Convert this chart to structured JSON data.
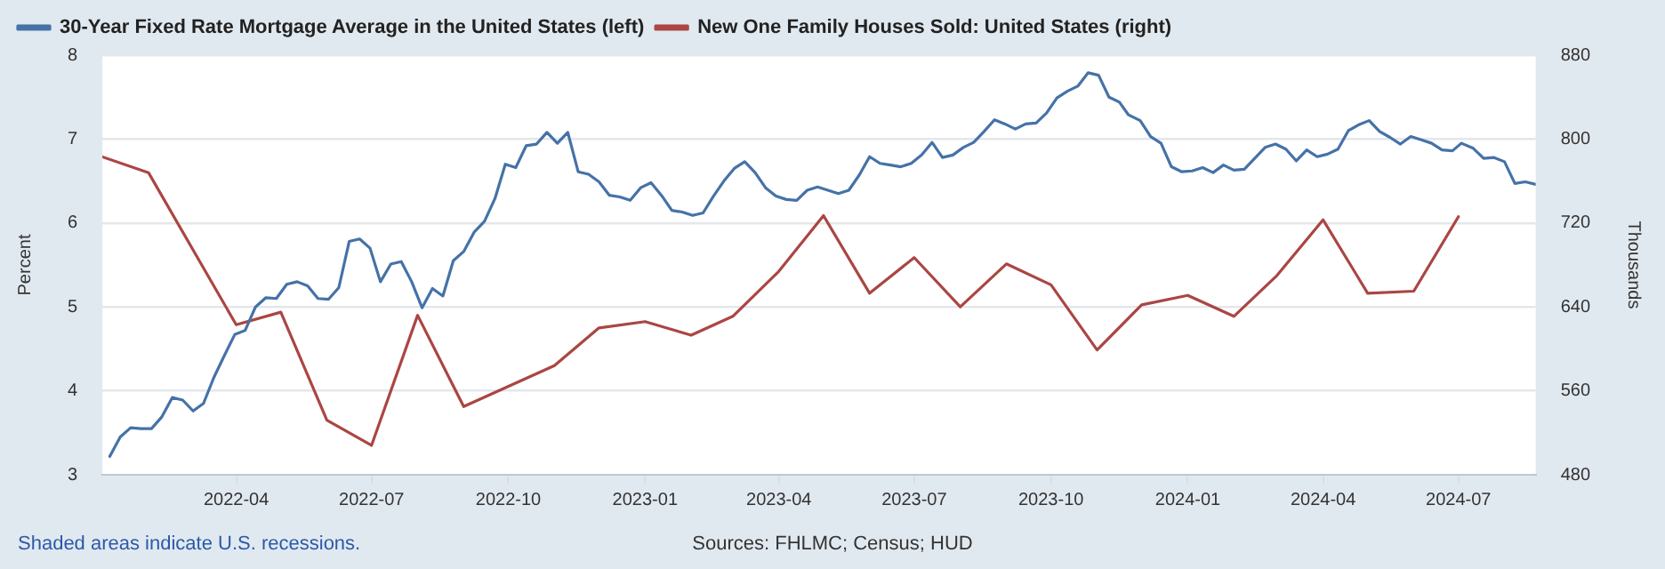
{
  "chart_data": {
    "type": "line",
    "ylabel": "Percent",
    "y2label": "Thousands",
    "annotations": [
      "Shaded areas indicate U.S. recessions.",
      "Sources: FHLMC; Census; HUD"
    ],
    "xlim": [
      "2022-01-01",
      "2024-08-22"
    ],
    "xticks": [
      "2022-04",
      "2022-07",
      "2022-10",
      "2023-01",
      "2023-04",
      "2023-07",
      "2023-10",
      "2024-01",
      "2024-04",
      "2024-07"
    ],
    "ylim": [
      3,
      8
    ],
    "yticks": [
      3,
      4,
      5,
      6,
      7,
      8
    ],
    "y2lim": [
      480,
      880
    ],
    "y2ticks": [
      480,
      560,
      640,
      720,
      800,
      880
    ],
    "grid": "y",
    "legend": "top left",
    "marker": "none",
    "line_style": "solid",
    "series": [
      {
        "name": "30-Year Fixed Rate Mortgage Average in the United States (left)",
        "color": "#4572a7",
        "axis": "y",
        "x": [
          "2022-01-06",
          "2022-01-13",
          "2022-01-20",
          "2022-01-27",
          "2022-02-03",
          "2022-02-10",
          "2022-02-17",
          "2022-02-24",
          "2022-03-03",
          "2022-03-10",
          "2022-03-17",
          "2022-03-24",
          "2022-03-31",
          "2022-04-07",
          "2022-04-14",
          "2022-04-21",
          "2022-04-28",
          "2022-05-05",
          "2022-05-12",
          "2022-05-19",
          "2022-05-26",
          "2022-06-02",
          "2022-06-09",
          "2022-06-16",
          "2022-06-23",
          "2022-06-30",
          "2022-07-07",
          "2022-07-14",
          "2022-07-21",
          "2022-07-28",
          "2022-08-04",
          "2022-08-11",
          "2022-08-18",
          "2022-08-25",
          "2022-09-01",
          "2022-09-08",
          "2022-09-15",
          "2022-09-22",
          "2022-09-29",
          "2022-10-06",
          "2022-10-13",
          "2022-10-20",
          "2022-10-27",
          "2022-11-03",
          "2022-11-10",
          "2022-11-17",
          "2022-11-24",
          "2022-12-01",
          "2022-12-08",
          "2022-12-15",
          "2022-12-22",
          "2022-12-29",
          "2023-01-05",
          "2023-01-12",
          "2023-01-19",
          "2023-01-26",
          "2023-02-02",
          "2023-02-09",
          "2023-02-16",
          "2023-02-23",
          "2023-03-02",
          "2023-03-09",
          "2023-03-16",
          "2023-03-23",
          "2023-03-30",
          "2023-04-06",
          "2023-04-13",
          "2023-04-20",
          "2023-04-27",
          "2023-05-04",
          "2023-05-11",
          "2023-05-18",
          "2023-05-25",
          "2023-06-01",
          "2023-06-08",
          "2023-06-15",
          "2023-06-22",
          "2023-06-29",
          "2023-07-06",
          "2023-07-13",
          "2023-07-20",
          "2023-07-27",
          "2023-08-03",
          "2023-08-10",
          "2023-08-17",
          "2023-08-24",
          "2023-08-31",
          "2023-09-07",
          "2023-09-14",
          "2023-09-21",
          "2023-09-28",
          "2023-10-05",
          "2023-10-12",
          "2023-10-19",
          "2023-10-26",
          "2023-11-02",
          "2023-11-09",
          "2023-11-16",
          "2023-11-22",
          "2023-11-30",
          "2023-12-07",
          "2023-12-14",
          "2023-12-21",
          "2023-12-28",
          "2024-01-04",
          "2024-01-11",
          "2024-01-18",
          "2024-01-25",
          "2024-02-01",
          "2024-02-08",
          "2024-02-15",
          "2024-02-22",
          "2024-02-29",
          "2024-03-07",
          "2024-03-14",
          "2024-03-21",
          "2024-03-28",
          "2024-04-04",
          "2024-04-11",
          "2024-04-18",
          "2024-04-25",
          "2024-05-02",
          "2024-05-09",
          "2024-05-16",
          "2024-05-23",
          "2024-05-30",
          "2024-06-06",
          "2024-06-13",
          "2024-06-20",
          "2024-06-27",
          "2024-07-03",
          "2024-07-11",
          "2024-07-18",
          "2024-07-25",
          "2024-08-01",
          "2024-08-08",
          "2024-08-15",
          "2024-08-22"
        ],
        "values": [
          3.22,
          3.45,
          3.56,
          3.55,
          3.55,
          3.69,
          3.92,
          3.89,
          3.76,
          3.85,
          4.16,
          4.42,
          4.67,
          4.72,
          5.0,
          5.11,
          5.1,
          5.27,
          5.3,
          5.25,
          5.1,
          5.09,
          5.23,
          5.78,
          5.81,
          5.7,
          5.3,
          5.51,
          5.54,
          5.3,
          4.99,
          5.22,
          5.13,
          5.55,
          5.66,
          5.89,
          6.02,
          6.29,
          6.7,
          6.66,
          6.92,
          6.94,
          7.08,
          6.95,
          7.08,
          6.61,
          6.58,
          6.49,
          6.33,
          6.31,
          6.27,
          6.42,
          6.48,
          6.33,
          6.15,
          6.13,
          6.09,
          6.12,
          6.32,
          6.5,
          6.65,
          6.73,
          6.6,
          6.42,
          6.32,
          6.28,
          6.27,
          6.39,
          6.43,
          6.39,
          6.35,
          6.39,
          6.57,
          6.79,
          6.71,
          6.69,
          6.67,
          6.71,
          6.81,
          6.96,
          6.78,
          6.81,
          6.9,
          6.96,
          7.09,
          7.23,
          7.18,
          7.12,
          7.18,
          7.19,
          7.31,
          7.49,
          7.57,
          7.63,
          7.79,
          7.76,
          7.5,
          7.44,
          7.29,
          7.22,
          7.03,
          6.95,
          6.67,
          6.61,
          6.62,
          6.66,
          6.6,
          6.69,
          6.63,
          6.64,
          6.77,
          6.9,
          6.94,
          6.88,
          6.74,
          6.87,
          6.79,
          6.82,
          6.88,
          7.1,
          7.17,
          7.22,
          7.09,
          7.02,
          6.94,
          7.03,
          6.99,
          6.95,
          6.87,
          6.86,
          6.95,
          6.89,
          6.77,
          6.78,
          6.73,
          6.47,
          6.49,
          6.46
        ]
      },
      {
        "name": "New One Family Houses Sold: United States (right)",
        "color": "#aa4643",
        "axis": "y2",
        "x": [
          "2022-01",
          "2022-02",
          "2022-04",
          "2022-05",
          "2022-06",
          "2022-07",
          "2022-08",
          "2022-09",
          "2022-11",
          "2022-12",
          "2023-01",
          "2023-02",
          "2023-03",
          "2023-04",
          "2023-05",
          "2023-06",
          "2023-07",
          "2023-08",
          "2023-09",
          "2023-10",
          "2023-11",
          "2023-12",
          "2024-01",
          "2024-02",
          "2024-03",
          "2024-04",
          "2024-05",
          "2024-06",
          "2024-07"
        ],
        "values": [
          783,
          768,
          623,
          635,
          532,
          508,
          632,
          545,
          584,
          620,
          626,
          613,
          631,
          674,
          727,
          653,
          687,
          640,
          681,
          661,
          599,
          642,
          651,
          631,
          670,
          723,
          653,
          655,
          726
        ]
      }
    ]
  }
}
